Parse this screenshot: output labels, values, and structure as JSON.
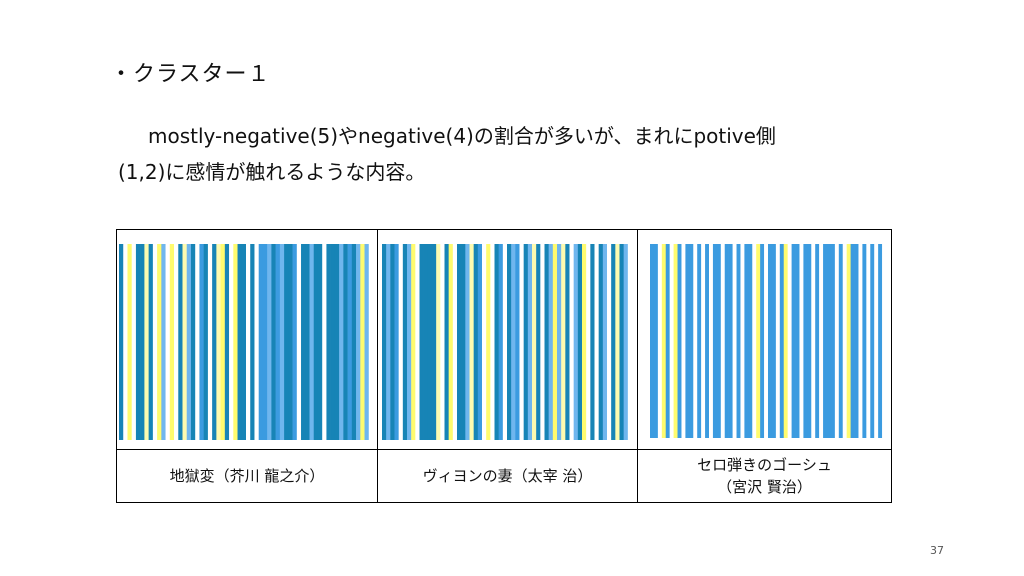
{
  "slide": {
    "heading": "・クラスター１",
    "body_line1": "mostly-negative(5)やnegative(4)の割合が多いが、まれにpotive側",
    "body_line2": "(1,2)に感情が触れるような内容。",
    "page_number": "37"
  },
  "colors": {
    "dark_blue": "#1784b6",
    "mid_blue": "#3b9be0",
    "light_blue": "#6fb6ee",
    "yellow": "#fffb6e",
    "pale_yellow": "#fdfbb0",
    "white": "#ffffff"
  },
  "works": [
    {
      "caption_line1": "地獄変（芥川 龍之介）",
      "caption_line2": "",
      "stripes": [
        "D",
        "W",
        "Y",
        "W",
        "D",
        "D",
        "P",
        "D",
        "W",
        "Y",
        "L",
        "W",
        "Y",
        "W",
        "D",
        "P",
        "L",
        "D",
        "W",
        "M",
        "D",
        "W",
        "D",
        "P",
        "Y",
        "D",
        "W",
        "Y",
        "D",
        "D",
        "W",
        "D",
        "W",
        "M",
        "M",
        "L",
        "D",
        "M",
        "L",
        "D",
        "D",
        "M",
        "W",
        "D",
        "D",
        "L",
        "D",
        "D",
        "W",
        "D",
        "D",
        "D",
        "L",
        "D",
        "M",
        "D",
        "L",
        "Y",
        "L",
        "W"
      ]
    },
    {
      "caption_line1": "ヴィヨンの妻（太宰 治）",
      "caption_line2": "",
      "stripes": [
        "D",
        "L",
        "D",
        "M",
        "W",
        "D",
        "L",
        "Y",
        "W",
        "D",
        "D",
        "D",
        "D",
        "P",
        "W",
        "D",
        "Y",
        "W",
        "D",
        "D",
        "L",
        "P",
        "D",
        "M",
        "W",
        "Y",
        "W",
        "D",
        "M",
        "W",
        "D",
        "L",
        "M",
        "W",
        "D",
        "L",
        "P",
        "D",
        "W",
        "D",
        "L",
        "Y",
        "L",
        "P",
        "D",
        "W",
        "L",
        "D",
        "Y",
        "W",
        "D",
        "W",
        "D",
        "L",
        "W",
        "D",
        "P",
        "D",
        "L",
        "W"
      ]
    },
    {
      "caption_line1": "セロ弾きのゴーシュ",
      "caption_line2": "（宮沢 賢治）",
      "stripes": [
        "M",
        "M",
        "W",
        "Y",
        "M",
        "W",
        "Y",
        "M",
        "W",
        "M",
        "M",
        "W",
        "M",
        "W",
        "M",
        "W",
        "M",
        "M",
        "W",
        "M",
        "M",
        "W",
        "M",
        "W",
        "M",
        "M",
        "W",
        "Y",
        "M",
        "W",
        "M",
        "M",
        "W",
        "M",
        "Y",
        "W",
        "M",
        "M",
        "W",
        "M",
        "M",
        "W",
        "M",
        "W",
        "M",
        "M",
        "M",
        "W",
        "M",
        "W",
        "Y",
        "M",
        "M",
        "W",
        "M",
        "W",
        "M",
        "W",
        "M",
        "W"
      ]
    }
  ]
}
